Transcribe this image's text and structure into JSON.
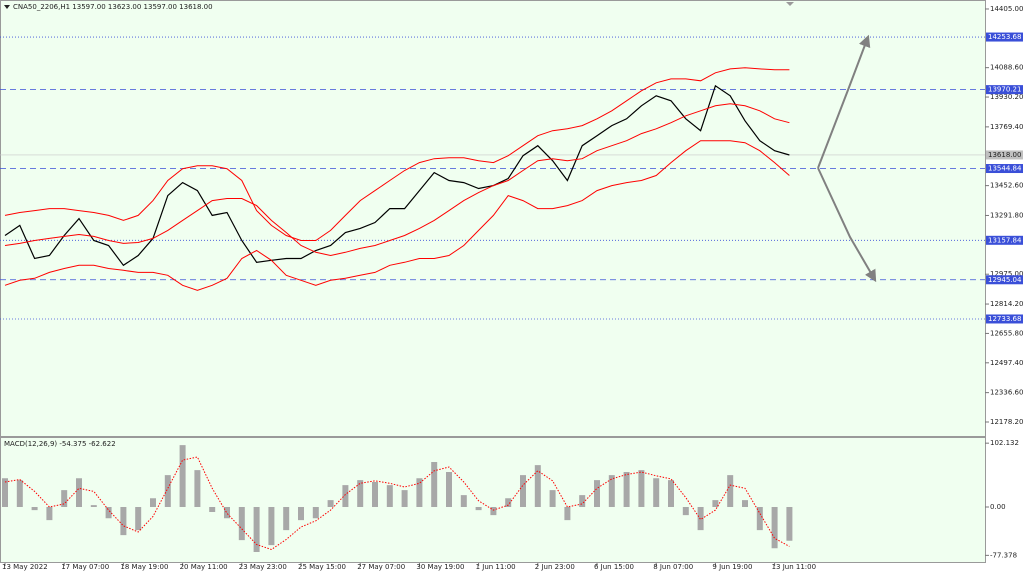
{
  "chart_data": [
    {
      "type": "line",
      "title": "CNA50_2206,H1  13597.00 13623.00 13597.00 13618.00",
      "categories": [
        "13 May 2022",
        null,
        null,
        null,
        "17 May 07:00",
        null,
        null,
        null,
        "18 May 19:00",
        null,
        null,
        null,
        "20 May 11:00",
        null,
        null,
        null,
        "23 May 23:00",
        null,
        null,
        null,
        "25 May 15:00",
        null,
        null,
        null,
        "27 May 07:00",
        null,
        null,
        null,
        "30 May 19:00",
        null,
        null,
        null,
        "1 Jun 11:00",
        null,
        null,
        null,
        "2 Jun 23:00",
        null,
        null,
        null,
        "6 Jun 15:00",
        null,
        null,
        null,
        "8 Jun 07:00",
        null,
        null,
        null,
        "9 Jun 19:00",
        null,
        null,
        null,
        "13 Jun 11:00",
        null
      ],
      "series": [
        {
          "color": "#000000",
          "values": [
            13184,
            13238,
            13060,
            13076,
            13184,
            13275,
            13157,
            13130,
            13023,
            13076,
            13168,
            13399,
            13469,
            13426,
            13292,
            13308,
            13157,
            13039,
            13050,
            13060,
            13060,
            13103,
            13130,
            13200,
            13222,
            13254,
            13329,
            13329,
            13426,
            13523,
            13480,
            13469,
            13437,
            13453,
            13491,
            13614,
            13668,
            13587,
            13480,
            13668,
            13722,
            13776,
            13813,
            13883,
            13937,
            13910,
            13813,
            13749,
            13991,
            13937,
            13802,
            13695,
            13641,
            13618
          ]
        },
        {
          "color": "#ff0000",
          "values": [
            13292,
            13308,
            13318,
            13329,
            13329,
            13318,
            13308,
            13292,
            13265,
            13292,
            13372,
            13480,
            13544,
            13560,
            13560,
            13544,
            13480,
            13318,
            13238,
            13184,
            13157,
            13157,
            13211,
            13292,
            13372,
            13426,
            13480,
            13534,
            13577,
            13598,
            13603,
            13603,
            13587,
            13577,
            13614,
            13668,
            13722,
            13749,
            13759,
            13776,
            13813,
            13856,
            13910,
            13964,
            14007,
            14028,
            14028,
            14018,
            14061,
            14082,
            14088,
            14082,
            14077,
            14077
          ]
        },
        {
          "color": "#ff0000",
          "values": [
            13130,
            13141,
            13157,
            13168,
            13179,
            13189,
            13179,
            13157,
            13141,
            13146,
            13168,
            13211,
            13265,
            13318,
            13372,
            13383,
            13383,
            13345,
            13265,
            13200,
            13130,
            13093,
            13076,
            13093,
            13114,
            13130,
            13157,
            13184,
            13222,
            13265,
            13318,
            13372,
            13415,
            13453,
            13480,
            13534,
            13587,
            13598,
            13587,
            13598,
            13641,
            13668,
            13695,
            13733,
            13759,
            13792,
            13829,
            13856,
            13883,
            13894,
            13883,
            13856,
            13813,
            13792
          ]
        },
        {
          "color": "#ff0000",
          "values": [
            12915,
            12942,
            12953,
            12985,
            13006,
            13023,
            13023,
            13006,
            12996,
            12985,
            12985,
            12969,
            12915,
            12888,
            12915,
            12953,
            13060,
            13103,
            13050,
            12969,
            12942,
            12915,
            12942,
            12953,
            12969,
            12985,
            13023,
            13039,
            13060,
            13060,
            13076,
            13130,
            13211,
            13292,
            13399,
            13372,
            13329,
            13329,
            13345,
            13372,
            13426,
            13453,
            13469,
            13480,
            13507,
            13577,
            13641,
            13695,
            13695,
            13695,
            13684,
            13641,
            13577,
            13507
          ]
        }
      ],
      "ylim": [
        12097.4,
        14448.0
      ],
      "yticks": [
        {
          "value": 14405,
          "label": "14405.00"
        },
        {
          "value": 14088.6,
          "label": "14088.60"
        },
        {
          "value": 13930.2,
          "label": "13930.20"
        },
        {
          "value": 13769.4,
          "label": "13769.40"
        },
        {
          "value": 13452.6,
          "label": "13452.60"
        },
        {
          "value": 13291.8,
          "label": "13291.80"
        },
        {
          "value": 12975,
          "label": "12975.00"
        },
        {
          "value": 12814.2,
          "label": "12814.20"
        },
        {
          "value": 12655.8,
          "label": "12655.80"
        },
        {
          "value": 12497.4,
          "label": "12497.40"
        },
        {
          "value": 12336.6,
          "label": "12336.60"
        },
        {
          "value": 12178.2,
          "label": "12178.20"
        }
      ],
      "levels": [
        {
          "value": 14253.68,
          "label": "14253.68",
          "style": "dotted"
        },
        {
          "value": 13970.21,
          "label": "13970.21",
          "style": "dashed"
        },
        {
          "value": 13544.84,
          "label": "13544.84",
          "style": "dashed"
        },
        {
          "value": 13157.84,
          "label": "13157.84",
          "style": "dotted"
        },
        {
          "value": 12945.04,
          "label": "12945.04",
          "style": "dashed"
        },
        {
          "value": 12733.68,
          "label": "12733.68",
          "style": "dotted"
        }
      ],
      "level_color": "#3a4fd8",
      "current": {
        "value": 13618,
        "label": "13618.00"
      }
    },
    {
      "type": "bar",
      "title": "MACD(12,26,9) -54.375 -62.622",
      "series": [
        {
          "type": "bar",
          "color": "#a8a8a8",
          "values": [
            46,
            43,
            -5,
            -21,
            27,
            46,
            3,
            -18,
            -45,
            -37,
            14,
            51,
            99,
            59,
            -8,
            -18,
            -53,
            -72,
            -61,
            -37,
            -21,
            -18,
            11,
            35,
            43,
            40,
            35,
            27,
            46,
            72,
            56,
            19,
            -5,
            -13,
            14,
            51,
            67,
            27,
            -21,
            19,
            43,
            51,
            56,
            59,
            46,
            43,
            -13,
            -37,
            11,
            51,
            11,
            -37,
            -66,
            -54
          ]
        },
        {
          "type": "line",
          "color": "#ff0000",
          "values": [
            40,
            44,
            25,
            0,
            5,
            30,
            25,
            -5,
            -30,
            -40,
            -15,
            30,
            75,
            80,
            30,
            -10,
            -35,
            -60,
            -68,
            -52,
            -32,
            -22,
            -5,
            20,
            38,
            42,
            38,
            32,
            38,
            58,
            64,
            40,
            10,
            -5,
            3,
            35,
            58,
            42,
            0,
            5,
            30,
            45,
            52,
            56,
            50,
            45,
            15,
            -20,
            -5,
            35,
            30,
            -10,
            -50,
            -63
          ]
        }
      ],
      "ylim": [
        -89.6,
        110.4
      ],
      "yticks": [
        102.132,
        {
          "value": 0,
          "label": "0.00"
        },
        -77.378
      ]
    }
  ]
}
